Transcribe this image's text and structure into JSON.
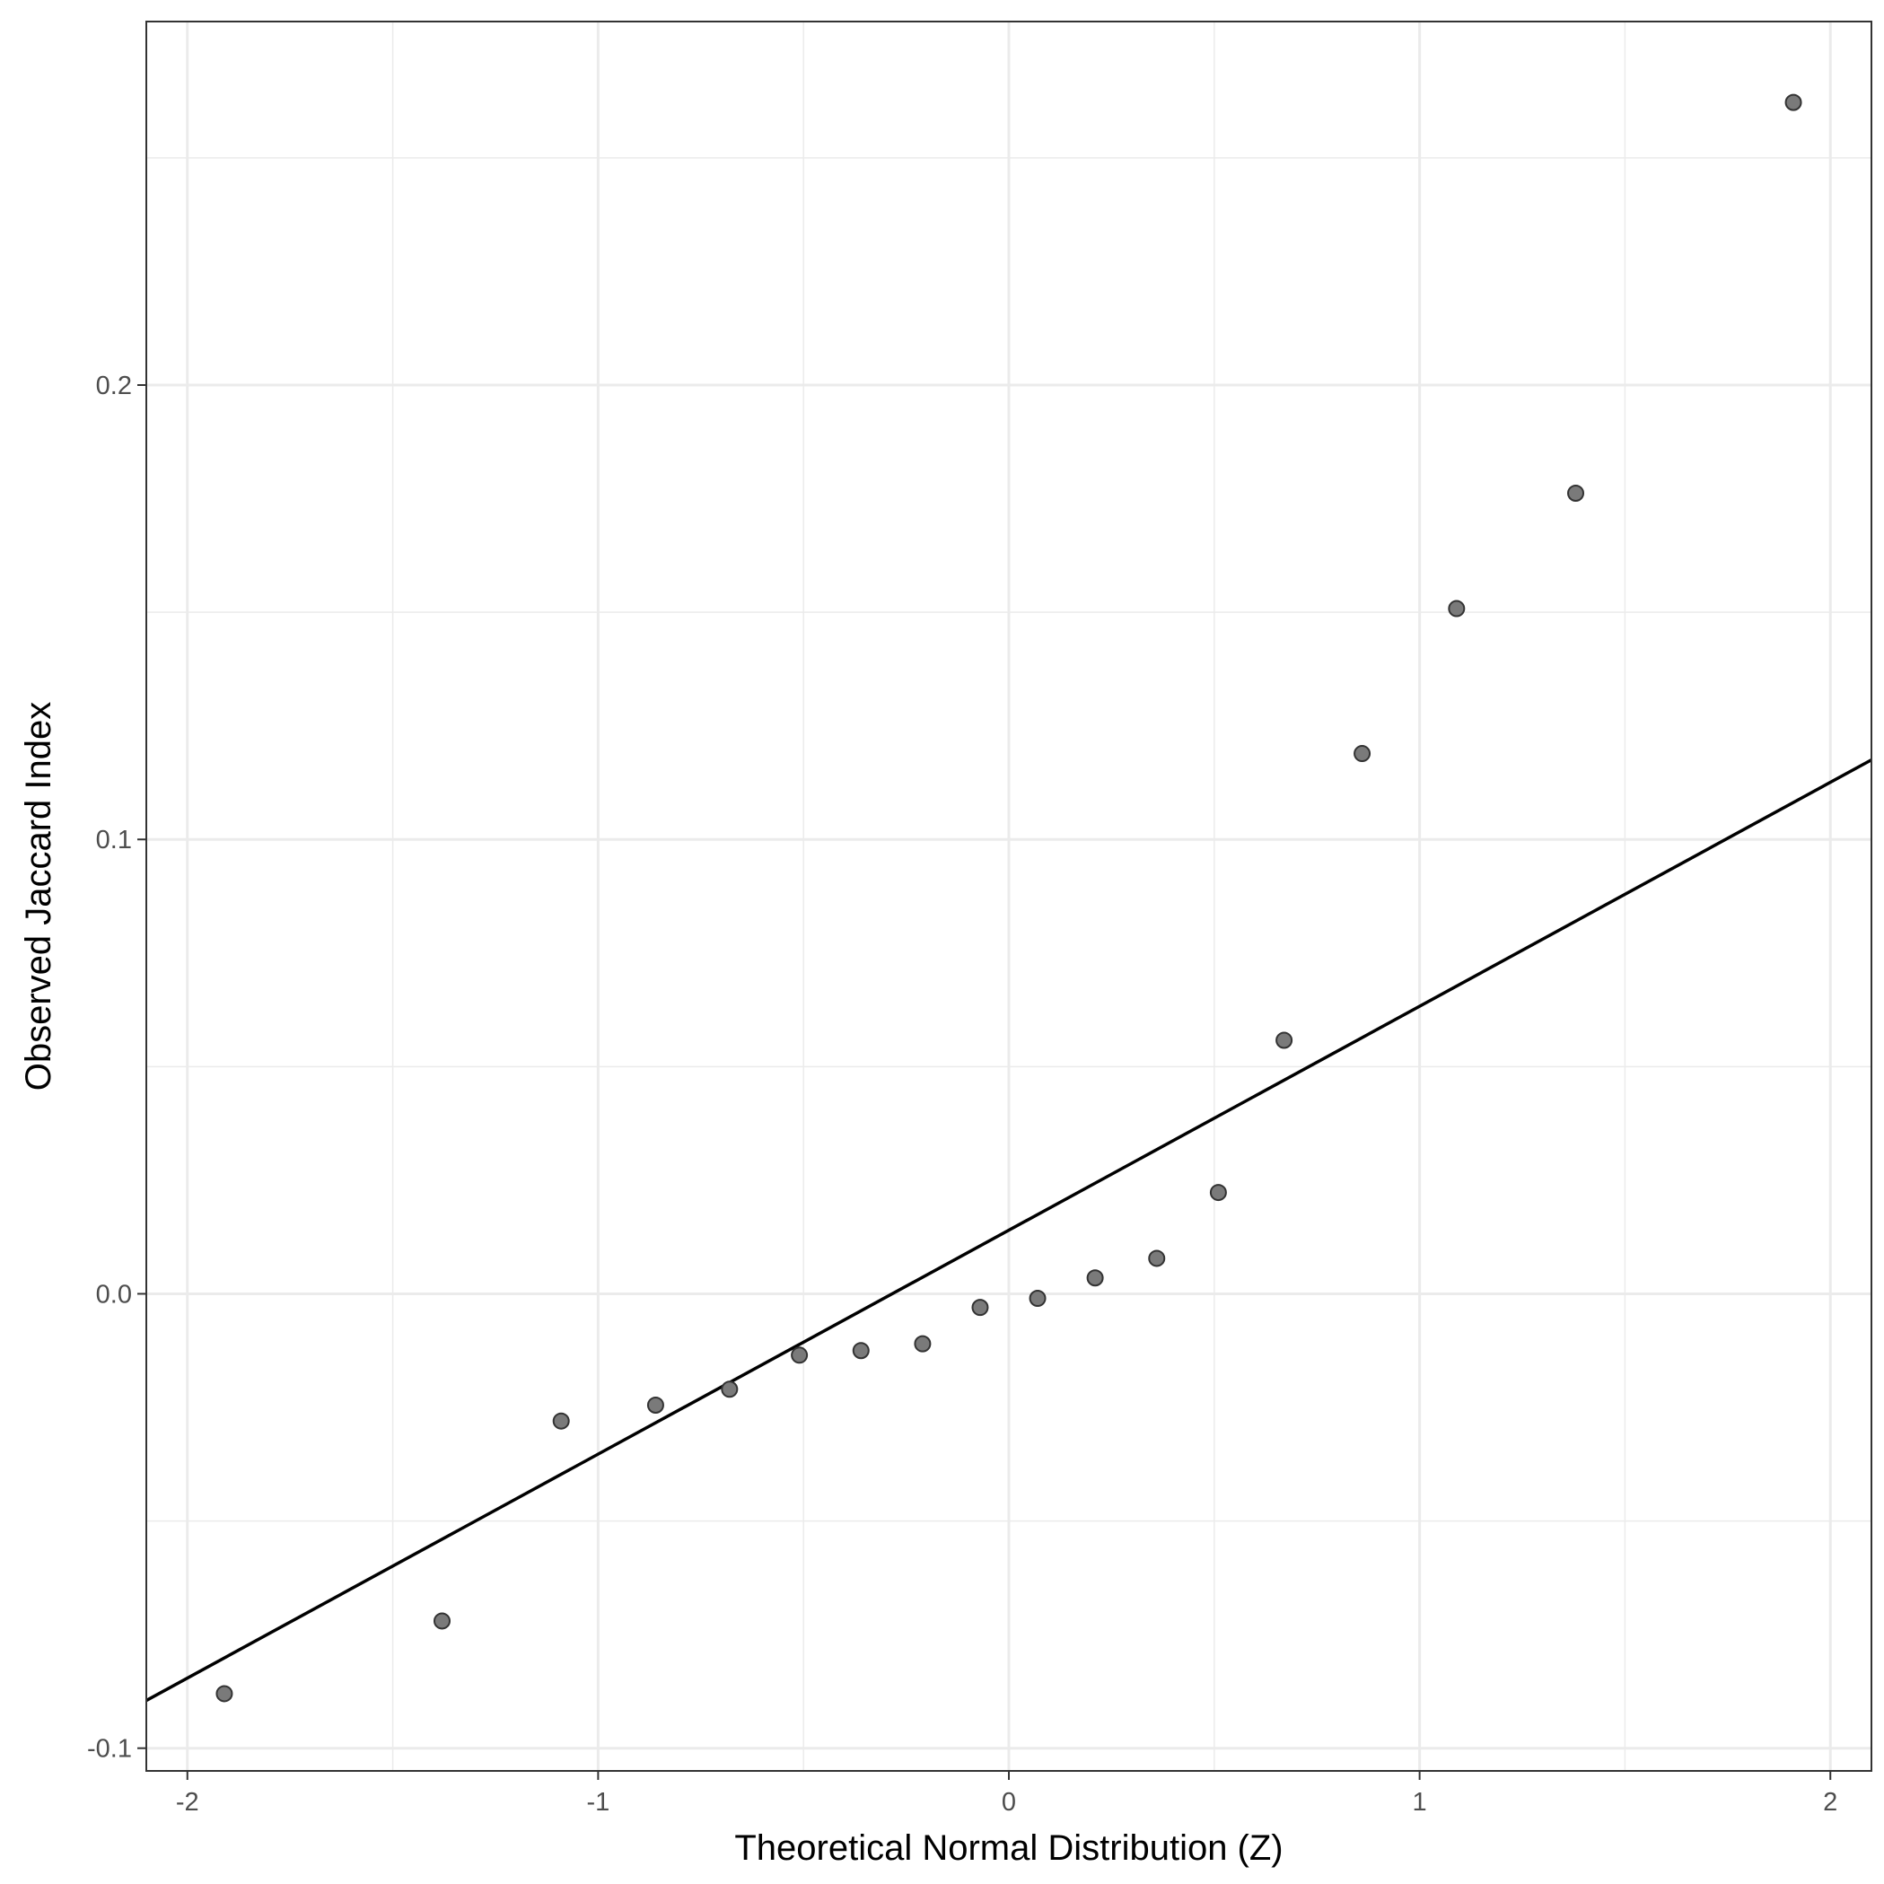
{
  "chart_data": {
    "type": "scatter",
    "title": "",
    "xlabel": "Theoretical Normal Distribution (Z)",
    "ylabel": "Observed Jaccard Index",
    "xlim": [
      -2.1,
      2.1
    ],
    "ylim": [
      -0.105,
      0.28
    ],
    "x_ticks": [
      -2,
      -1,
      0,
      1,
      2
    ],
    "x_tick_labels": [
      "-2",
      "-1",
      "0",
      "1",
      "2"
    ],
    "y_ticks": [
      -0.1,
      0.0,
      0.1,
      0.2
    ],
    "y_tick_labels": [
      "-0.1",
      "0.0",
      "0.1",
      "0.2"
    ],
    "grid": true,
    "points": [
      {
        "x": -1.91,
        "y": -0.088
      },
      {
        "x": -1.38,
        "y": -0.072
      },
      {
        "x": -1.09,
        "y": -0.028
      },
      {
        "x": -0.86,
        "y": -0.0245
      },
      {
        "x": -0.68,
        "y": -0.021
      },
      {
        "x": -0.51,
        "y": -0.0135
      },
      {
        "x": -0.36,
        "y": -0.0125
      },
      {
        "x": -0.21,
        "y": -0.011
      },
      {
        "x": -0.07,
        "y": -0.003
      },
      {
        "x": 0.07,
        "y": -0.001
      },
      {
        "x": 0.21,
        "y": 0.0035
      },
      {
        "x": 0.36,
        "y": 0.0078
      },
      {
        "x": 0.51,
        "y": 0.0223
      },
      {
        "x": 0.67,
        "y": 0.0558
      },
      {
        "x": 0.86,
        "y": 0.1189
      },
      {
        "x": 1.09,
        "y": 0.1508
      },
      {
        "x": 1.38,
        "y": 0.1762
      },
      {
        "x": 1.91,
        "y": 0.2622
      }
    ],
    "reference_line": {
      "x": [
        -2.1,
        2.1
      ],
      "y": [
        -0.0895,
        0.1175
      ]
    },
    "colors": {
      "point_fill": "#7a7a7a",
      "point_stroke": "#333333",
      "line": "#000000",
      "grid": "#ebebeb",
      "panel_border": "#333333"
    }
  }
}
